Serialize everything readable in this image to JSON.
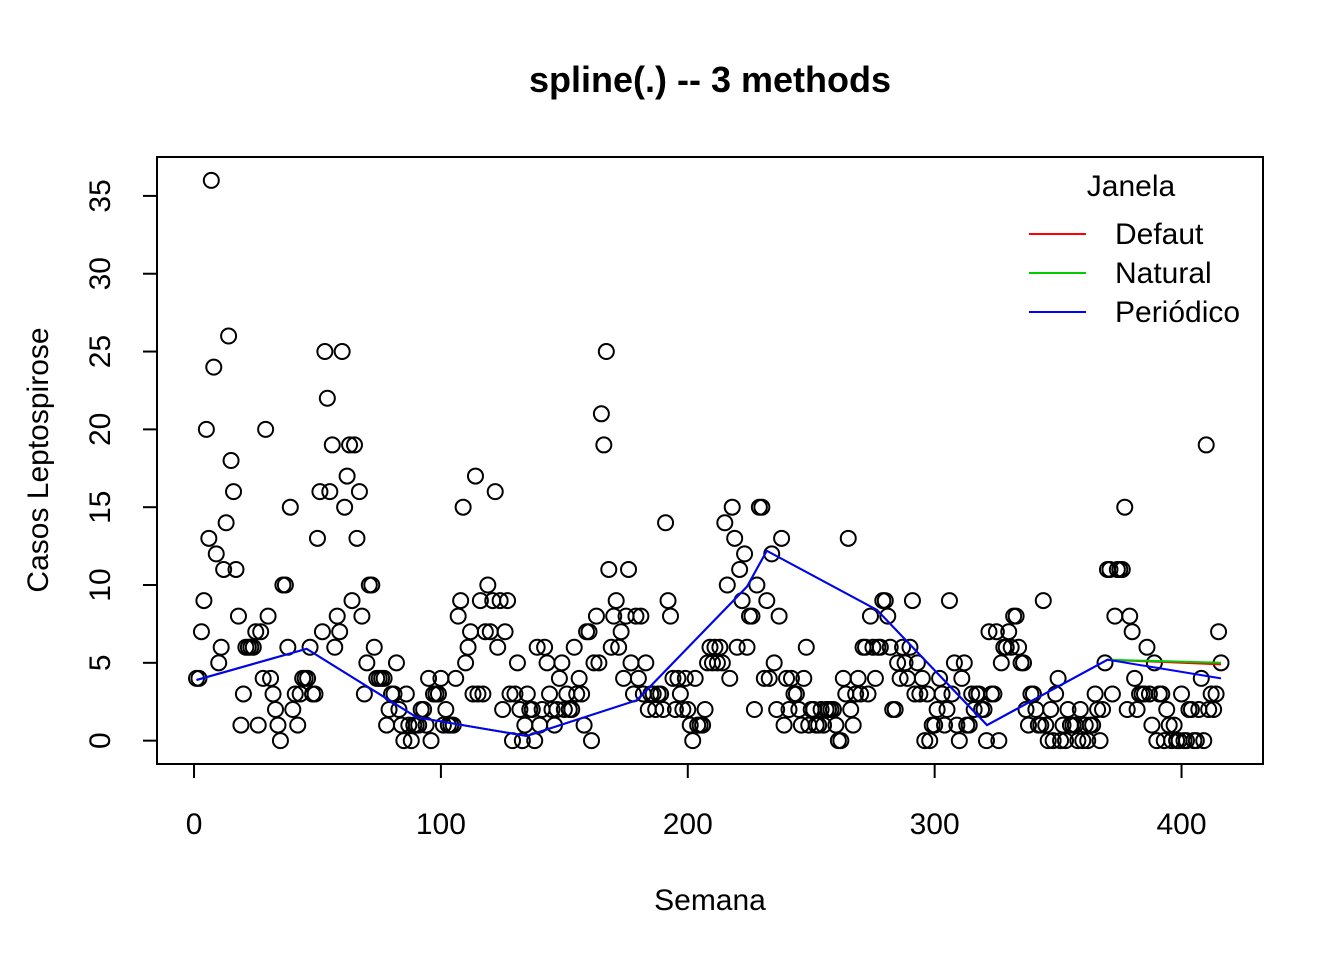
{
  "chart_data": {
    "type": "scatter",
    "title": "spline(.) -- 3 methods",
    "xlabel": "Semana",
    "ylabel": "Casos Leptospirose",
    "xlim": [
      -15,
      433
    ],
    "ylim": [
      -1.5,
      37.5
    ],
    "xticks": [
      0,
      100,
      200,
      300,
      400
    ],
    "yticks": [
      0,
      5,
      10,
      15,
      20,
      25,
      30,
      35
    ],
    "grid": false,
    "legend": {
      "title": "Janela",
      "position": "top-right",
      "entries": [
        {
          "label": "Defaut",
          "color": "#ff0000"
        },
        {
          "label": "Natural",
          "color": "#00cd00"
        },
        {
          "label": "Periódico",
          "color": "#0000ff"
        }
      ]
    },
    "points": {
      "x": [
        1,
        2,
        3,
        4,
        5,
        6,
        7,
        8,
        9,
        10,
        11,
        12,
        13,
        14,
        15,
        16,
        17,
        18,
        19,
        20,
        21,
        22,
        23,
        24,
        25,
        26,
        27,
        28,
        29,
        30,
        31,
        32,
        33,
        34,
        35,
        36,
        37,
        38,
        39,
        40,
        41,
        42,
        43,
        44,
        45,
        46,
        47,
        48,
        49,
        50,
        51,
        52,
        53,
        54,
        55,
        56,
        57,
        58,
        59,
        60,
        61,
        62,
        63,
        64,
        65,
        66,
        67,
        68,
        69,
        70,
        71,
        72,
        73,
        74,
        75,
        76,
        77,
        78,
        79,
        80,
        81,
        82,
        83,
        84,
        85,
        86,
        87,
        88,
        89,
        90,
        91,
        92,
        93,
        94,
        95,
        96,
        97,
        98,
        99,
        100,
        101,
        102,
        103,
        104,
        105,
        106,
        107,
        108,
        109,
        110,
        111,
        112,
        113,
        114,
        115,
        116,
        117,
        118,
        119,
        120,
        121,
        122,
        123,
        124,
        125,
        126,
        127,
        128,
        129,
        130,
        131,
        132,
        133,
        134,
        135,
        136,
        137,
        138,
        139,
        140,
        141,
        142,
        143,
        144,
        145,
        146,
        147,
        148,
        149,
        150,
        151,
        152,
        153,
        154,
        155,
        156,
        157,
        158,
        159,
        160,
        161,
        162,
        163,
        164,
        165,
        166,
        167,
        168,
        169,
        170,
        171,
        172,
        173,
        174,
        175,
        176,
        177,
        178,
        179,
        180,
        181,
        182,
        183,
        184,
        185,
        186,
        187,
        188,
        189,
        190,
        191,
        192,
        193,
        194,
        195,
        196,
        197,
        198,
        199,
        200,
        201,
        202,
        203,
        204,
        205,
        206,
        207,
        208,
        209,
        210,
        211,
        212,
        213,
        214,
        215,
        216,
        217,
        218,
        219,
        220,
        221,
        222,
        223,
        224,
        225,
        226,
        227,
        228,
        229,
        230,
        231,
        232,
        233,
        234,
        235,
        236,
        237,
        238,
        239,
        240,
        241,
        242,
        243,
        244,
        245,
        246,
        247,
        248,
        249,
        250,
        251,
        252,
        253,
        254,
        255,
        256,
        257,
        258,
        259,
        260,
        261,
        262,
        263,
        264,
        265,
        266,
        267,
        268,
        269,
        270,
        271,
        272,
        273,
        274,
        275,
        276,
        277,
        278,
        279,
        280,
        281,
        282,
        283,
        284,
        285,
        286,
        287,
        288,
        289,
        290,
        291,
        292,
        293,
        294,
        295,
        296,
        297,
        298,
        299,
        300,
        301,
        302,
        303,
        304,
        305,
        306,
        307,
        308,
        309,
        310,
        311,
        312,
        313,
        314,
        315,
        316,
        317,
        318,
        319,
        320,
        321,
        322,
        323,
        324,
        325,
        326,
        327,
        328,
        329,
        330,
        331,
        332,
        333,
        334,
        335,
        336,
        337,
        338,
        339,
        340,
        341,
        342,
        343,
        344,
        345,
        346,
        347,
        348,
        349,
        350,
        351,
        352,
        353,
        354,
        355,
        356,
        357,
        358,
        359,
        360,
        361,
        362,
        363,
        364,
        365,
        366,
        367,
        368,
        369,
        370,
        371,
        372,
        373,
        374,
        375,
        376,
        377,
        378,
        379,
        380,
        381,
        382,
        383,
        384,
        385,
        386,
        387,
        388,
        389,
        390,
        391,
        392,
        393,
        394,
        395,
        396,
        397,
        398,
        399,
        400,
        401,
        402,
        403,
        404,
        405,
        406,
        407,
        408,
        409,
        410,
        411,
        412,
        413,
        414,
        415,
        416
      ],
      "y": [
        4,
        4,
        7,
        9,
        20,
        13,
        36,
        24,
        12,
        5,
        6,
        11,
        14,
        26,
        18,
        16,
        11,
        8,
        1,
        3,
        6,
        6,
        6,
        6,
        7,
        1,
        7,
        4,
        20,
        8,
        4,
        3,
        2,
        1,
        0,
        10,
        10,
        6,
        15,
        2,
        3,
        1,
        3,
        4,
        4,
        4,
        6,
        3,
        3,
        13,
        16,
        7,
        25,
        22,
        16,
        19,
        6,
        8,
        7,
        25,
        15,
        17,
        19,
        9,
        19,
        13,
        16,
        8,
        3,
        5,
        10,
        10,
        6,
        4,
        4,
        4,
        4,
        1,
        2,
        3,
        3,
        5,
        2,
        1,
        0,
        3,
        1,
        0,
        1,
        1,
        1,
        2,
        2,
        1,
        4,
        0,
        3,
        3,
        3,
        4,
        1,
        2,
        1,
        1,
        1,
        4,
        8,
        9,
        15,
        5,
        6,
        7,
        3,
        17,
        3,
        9,
        3,
        7,
        10,
        7,
        9,
        16,
        6,
        9,
        2,
        7,
        9,
        3,
        0,
        3,
        5,
        2,
        0,
        1,
        3,
        2,
        2,
        0,
        6,
        1,
        2,
        6,
        5,
        3,
        2,
        1,
        2,
        4,
        5,
        2,
        3,
        2,
        2,
        6,
        3,
        4,
        3,
        1,
        7,
        7,
        0,
        5,
        8,
        5,
        21,
        19,
        25,
        11,
        6,
        8,
        9,
        6,
        7,
        4,
        8,
        11,
        5,
        3,
        8,
        4,
        8,
        3,
        5,
        2,
        3,
        3,
        2,
        3,
        3,
        2,
        14,
        9,
        8,
        4,
        2,
        4,
        3,
        2,
        4,
        2,
        1,
        0,
        4,
        1,
        1,
        1,
        2,
        5,
        6,
        5,
        6,
        5,
        6,
        5,
        14,
        10,
        4,
        15,
        13,
        6,
        11,
        9,
        12,
        6,
        8,
        8,
        2,
        10,
        15,
        15,
        4,
        9,
        4,
        12,
        5,
        2,
        8,
        13,
        1,
        4,
        2,
        4,
        3,
        3,
        2,
        1,
        4,
        6,
        1,
        2,
        2,
        1,
        1,
        2,
        1,
        2,
        2,
        2,
        2,
        1,
        0,
        0,
        4,
        3,
        13,
        2,
        1,
        3,
        4,
        3,
        6,
        6,
        3,
        8,
        6,
        4,
        6,
        6,
        9,
        9,
        8,
        6,
        2,
        2,
        5,
        4,
        6,
        5,
        4,
        6,
        9,
        3,
        5,
        3,
        4,
        0,
        3,
        0,
        1,
        1,
        2,
        4,
        3,
        1,
        2,
        9,
        3,
        5,
        1,
        0,
        4,
        5,
        1,
        1,
        3,
        2,
        3,
        3,
        2,
        2,
        0,
        7,
        3,
        3,
        7,
        0,
        5,
        6,
        6,
        7,
        6,
        8,
        8,
        6,
        5,
        5,
        2,
        1,
        3,
        3,
        2,
        1,
        1,
        9,
        1,
        0,
        2,
        0,
        3,
        4,
        0,
        1,
        0,
        2,
        1,
        1,
        1,
        0,
        2,
        0,
        1,
        0,
        1,
        1,
        3,
        2,
        0,
        2,
        5,
        11,
        11,
        3,
        8,
        11,
        11,
        11,
        15,
        2,
        8,
        7,
        4,
        2,
        3,
        3,
        3,
        6,
        3,
        1,
        5,
        0,
        3,
        3,
        0,
        2,
        1,
        0,
        1,
        0,
        0,
        3,
        0,
        0,
        2,
        2,
        0,
        0,
        2,
        4,
        0,
        19,
        2,
        3,
        2,
        3,
        7,
        5
      ]
    },
    "series": [
      {
        "name": "Defaut",
        "color": "#ff0000",
        "x": [
          1,
          45.6,
          90.2,
          134.8,
          179.4,
          224,
          232,
          276.6,
          321.2,
          370,
          416
        ],
        "y": [
          3.9,
          5.9,
          1.5,
          0.3,
          2.6,
          9.9,
          12.2,
          8.4,
          1.0,
          5.2,
          4.9
        ]
      },
      {
        "name": "Natural",
        "color": "#00cd00",
        "x": [
          1,
          45.6,
          90.2,
          134.8,
          179.4,
          224,
          232,
          276.6,
          321.2,
          370,
          416
        ],
        "y": [
          3.9,
          5.9,
          1.5,
          0.3,
          2.6,
          9.9,
          12.2,
          8.4,
          1.0,
          5.2,
          5.0
        ]
      },
      {
        "name": "Periódico",
        "color": "#0000ff",
        "x": [
          1,
          45.6,
          90.2,
          134.8,
          179.4,
          224,
          232,
          276.6,
          321.2,
          370,
          416
        ],
        "y": [
          3.9,
          5.9,
          1.5,
          0.3,
          2.6,
          9.9,
          12.2,
          8.4,
          1.0,
          5.2,
          4.0
        ]
      }
    ]
  }
}
